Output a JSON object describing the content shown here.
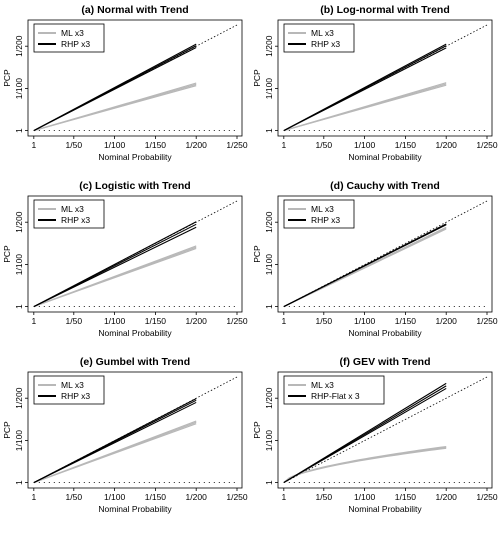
{
  "chart_data": [
    {
      "type": "line",
      "title": "(a) Normal with Trend",
      "xlabel": "Nominal Probability",
      "ylabel": "PCP",
      "x_ticks": [
        "1",
        "1/50",
        "1/100",
        "1/150",
        "1/200",
        "1/250"
      ],
      "y_ticks": [
        "1",
        "1/100",
        "1/200"
      ],
      "legend": [
        "ML x3",
        "RHP x3"
      ],
      "legend_position": "top-left",
      "x_range": [
        0,
        250
      ],
      "y_range": [
        0,
        250
      ],
      "reference_line": "y = x (dotted)",
      "series": [
        {
          "name": "ML x3",
          "color": "#b8b8b8",
          "endpoints_y": [
            107,
            110,
            113
          ],
          "end_x": 200
        },
        {
          "name": "RHP x3",
          "color": "#000000",
          "endpoints_y": [
            197,
            201,
            205
          ],
          "end_x": 200
        }
      ]
    },
    {
      "type": "line",
      "title": "(b) Log-normal with Trend",
      "xlabel": "Nominal Probability",
      "ylabel": "PCP",
      "x_ticks": [
        "1",
        "1/50",
        "1/100",
        "1/150",
        "1/200",
        "1/250"
      ],
      "y_ticks": [
        "1",
        "1/100",
        "1/200"
      ],
      "legend": [
        "ML x3",
        "RHP x3"
      ],
      "legend_position": "top-left",
      "x_range": [
        0,
        250
      ],
      "y_range": [
        0,
        250
      ],
      "reference_line": "y = x (dotted)",
      "series": [
        {
          "name": "ML x3",
          "color": "#b8b8b8",
          "endpoints_y": [
            108,
            111,
            114
          ],
          "end_x": 200
        },
        {
          "name": "RHP x3",
          "color": "#000000",
          "endpoints_y": [
            196,
            201,
            205
          ],
          "end_x": 200
        }
      ]
    },
    {
      "type": "line",
      "title": "(c) Logistic with Trend",
      "xlabel": "Nominal Probability",
      "ylabel": "PCP",
      "x_ticks": [
        "1",
        "1/50",
        "1/100",
        "1/150",
        "1/200",
        "1/250"
      ],
      "y_ticks": [
        "1",
        "1/100",
        "1/200"
      ],
      "legend": [
        "ML x3",
        "RHP x3"
      ],
      "legend_position": "top-left",
      "x_range": [
        0,
        250
      ],
      "y_range": [
        0,
        250
      ],
      "reference_line": "y = x (dotted)",
      "series": [
        {
          "name": "ML x3",
          "color": "#b8b8b8",
          "endpoints_y": [
            138,
            141,
            144
          ],
          "end_x": 200
        },
        {
          "name": "RHP x3",
          "color": "#000000",
          "endpoints_y": [
            188,
            195,
            201
          ],
          "end_x": 200
        }
      ]
    },
    {
      "type": "line",
      "title": "(d) Cauchy with Trend",
      "xlabel": "Nominal Probability",
      "ylabel": "PCP",
      "x_ticks": [
        "1",
        "1/50",
        "1/100",
        "1/150",
        "1/200",
        "1/250"
      ],
      "y_ticks": [
        "1",
        "1/100",
        "1/200"
      ],
      "legend": [
        "ML x3",
        "RHP x3"
      ],
      "legend_position": "top-left",
      "x_range": [
        0,
        250
      ],
      "y_range": [
        0,
        250
      ],
      "reference_line": "y = x (dotted)",
      "series": [
        {
          "name": "ML x3",
          "color": "#b8b8b8",
          "endpoints_y": [
            184,
            186,
            188
          ],
          "end_x": 200
        },
        {
          "name": "RHP x3",
          "color": "#000000",
          "endpoints_y": [
            194,
            195,
            196
          ],
          "end_x": 200
        }
      ]
    },
    {
      "type": "line",
      "title": "(e) Gumbel with Trend",
      "xlabel": "Nominal Probability",
      "ylabel": "PCP",
      "x_ticks": [
        "1",
        "1/50",
        "1/100",
        "1/150",
        "1/200",
        "1/250"
      ],
      "y_ticks": [
        "1",
        "1/100",
        "1/200"
      ],
      "legend": [
        "ML x3",
        "RHP x3"
      ],
      "legend_position": "top-left",
      "x_range": [
        0,
        250
      ],
      "y_range": [
        0,
        250
      ],
      "reference_line": "y = x (dotted)",
      "series": [
        {
          "name": "ML x3",
          "color": "#b8b8b8",
          "endpoints_y": [
            140,
            143,
            146
          ],
          "end_x": 200
        },
        {
          "name": "RHP x3",
          "color": "#000000",
          "endpoints_y": [
            190,
            195,
            199
          ],
          "end_x": 200
        }
      ]
    },
    {
      "type": "line",
      "title": "(f) GEV with Trend",
      "xlabel": "Nominal Probability",
      "ylabel": "PCP",
      "x_ticks": [
        "1",
        "1/50",
        "1/100",
        "1/150",
        "1/200",
        "1/250"
      ],
      "y_ticks": [
        "1",
        "1/100",
        "1/200"
      ],
      "legend": [
        "ML x3",
        "RHP-Flat x 3"
      ],
      "legend_position": "top-left",
      "x_range": [
        0,
        250
      ],
      "y_range": [
        0,
        250
      ],
      "reference_line": "y = x (dotted)",
      "series": [
        {
          "name": "ML x3",
          "color": "#b8b8b8",
          "endpoints_y": [
            82,
            84,
            86
          ],
          "end_x": 200,
          "curvature": "concave"
        },
        {
          "name": "RHP-Flat x 3",
          "color": "#000000",
          "endpoints_y": [
            223,
            229,
            235
          ],
          "end_x": 200
        }
      ]
    }
  ]
}
